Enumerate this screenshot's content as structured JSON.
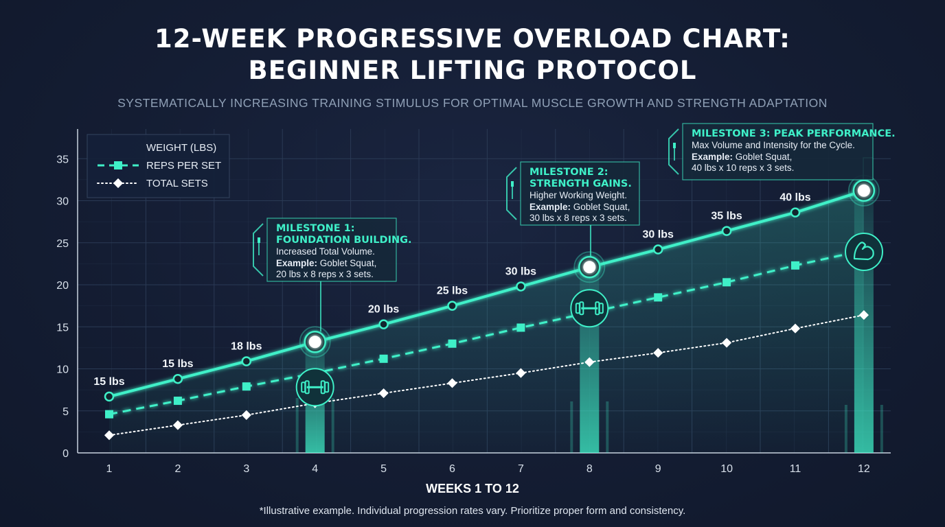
{
  "header": {
    "title_line1": "12-WEEK PROGRESSIVE OVERLOAD CHART:",
    "title_line2": "BEGINNER LIFTING PROTOCOL",
    "subtitle": "SYSTEMATICALLY INCREASING TRAINING STIMULUS FOR OPTIMAL MUSCLE GROWTH AND STRENGTH ADAPTATION"
  },
  "footnote": "*Illustrative example. Individual progression rates vary. Prioritize proper form and consistency.",
  "colors": {
    "accent": "#3ff0c8",
    "background": "#141d33",
    "grid": "#2a3a55",
    "sets": "#ffffff"
  },
  "chart_data": {
    "type": "line",
    "xlabel": "WEEKS 1 TO 12",
    "ylabel": "",
    "x": [
      1,
      2,
      3,
      4,
      5,
      6,
      7,
      8,
      9,
      10,
      11,
      12
    ],
    "ylim": [
      0,
      37
    ],
    "yticks": [
      0,
      5,
      10,
      15,
      20,
      25,
      30,
      35
    ],
    "grid": true,
    "legend_position": "top-left",
    "series": [
      {
        "name": "WEIGHT (LBS)",
        "style": "solid",
        "color": "#3ff0c8",
        "values": [
          6.7,
          8.8,
          10.9,
          13.2,
          15.3,
          17.5,
          19.8,
          22.1,
          24.2,
          26.4,
          28.6,
          31.2
        ],
        "point_labels": [
          "15 lbs",
          "15 lbs",
          "18 lbs",
          "",
          "20 lbs",
          "25 lbs",
          "30 lbs",
          "",
          "30 lbs",
          "35 lbs",
          "40 lbs",
          ""
        ]
      },
      {
        "name": "REPS PER SET",
        "style": "dashed",
        "color": "#3ff0c8",
        "values": [
          4.6,
          6.2,
          7.9,
          9.5,
          11.2,
          13.0,
          14.9,
          16.7,
          18.5,
          20.3,
          22.3,
          24.1
        ]
      },
      {
        "name": "TOTAL SETS",
        "style": "dotted",
        "color": "#ffffff",
        "values": [
          2.1,
          3.3,
          4.5,
          5.9,
          7.1,
          8.3,
          9.5,
          10.8,
          11.9,
          13.1,
          14.8,
          16.4
        ]
      }
    ],
    "milestones": [
      {
        "week": 4,
        "title_lines": [
          "MILESTONE 1:",
          "FOUNDATION BUILDING."
        ],
        "desc": "Increased Total Volume.",
        "example_label": "Example:",
        "example_lines": [
          " Goblet Squat,",
          "20 lbs x 8 reps x 3 sets."
        ],
        "icon": "dumbbell-icon"
      },
      {
        "week": 8,
        "title_lines": [
          "MILESTONE 2:",
          "STRENGTH GAINS."
        ],
        "desc": "Higher Working Weight.",
        "example_label": "Example:",
        "example_lines": [
          " Goblet Squat,",
          "30 lbs x 8 reps x 3 sets."
        ],
        "icon": "dumbbell-icon"
      },
      {
        "week": 12,
        "title_lines": [
          "MILESTONE 3: PEAK PERFORMANCE."
        ],
        "desc": "Max Volume and Intensity for the Cycle.",
        "example_label": "Example:",
        "example_lines": [
          " Goblet Squat,",
          "40 lbs x 10 reps x 3 sets."
        ],
        "icon": "flexed-bicep-icon"
      }
    ]
  }
}
